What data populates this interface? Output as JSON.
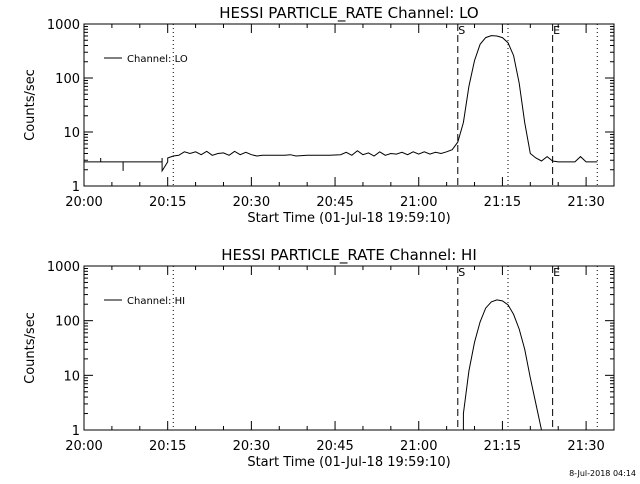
{
  "footer": {
    "timestamp": "8-Jul-2018 04:14"
  },
  "chart_data": [
    {
      "type": "line",
      "title": "HESSI PARTICLE_RATE Channel: LO",
      "xlabel": "Start Time (01-Jul-18 19:59:10)",
      "ylabel": "Counts/sec",
      "yscale": "log",
      "ylim": [
        1,
        1000
      ],
      "y_ticks": [
        "1",
        "10",
        "100",
        "1000"
      ],
      "x_ticks": [
        "20:00",
        "20:15",
        "20:30",
        "20:45",
        "21:00",
        "21:15",
        "21:30"
      ],
      "legend": {
        "entries": [
          "Channel: LO"
        ],
        "placement": "top-left"
      },
      "event_markers": [
        {
          "label": "S",
          "time": "21:07",
          "style": "dashed"
        },
        {
          "label": "E",
          "time": "21:24",
          "style": "dashed"
        }
      ],
      "dotted_lines": [
        "20:16",
        "21:16",
        "21:32"
      ],
      "series": [
        {
          "name": "Channel: LO",
          "x": [
            "20:00",
            "20:03",
            "20:03",
            "20:03",
            "20:06",
            "20:07",
            "20:07",
            "20:07",
            "20:10",
            "20:13",
            "20:14",
            "20:14",
            "20:14",
            "20:15",
            "20:15",
            "20:16",
            "20:16",
            "20:17",
            "20:18",
            "20:19",
            "20:20",
            "20:21",
            "20:22",
            "20:23",
            "20:24",
            "20:25",
            "20:26",
            "20:27",
            "20:28",
            "20:29",
            "20:30",
            "20:31",
            "20:32",
            "20:33",
            "20:34",
            "20:35",
            "20:36",
            "20:37",
            "20:38",
            "20:40",
            "20:42",
            "20:44",
            "20:46",
            "20:47",
            "20:48",
            "20:49",
            "20:50",
            "20:51",
            "20:52",
            "20:53",
            "20:54",
            "20:55",
            "20:56",
            "20:57",
            "20:58",
            "20:59",
            "21:00",
            "21:01",
            "21:02",
            "21:03",
            "21:04",
            "21:05",
            "21:06",
            "21:07",
            "21:08",
            "21:09",
            "21:10",
            "21:11",
            "21:12",
            "21:13",
            "21:14",
            "21:15",
            "21:16",
            "21:17",
            "21:18",
            "21:19",
            "21:20",
            "21:21",
            "21:22",
            "21:23",
            "21:24",
            "21:25",
            "21:26",
            "21:28",
            "21:29",
            "21:30",
            "21:31",
            "21:32"
          ],
          "y": [
            2.8,
            2.8,
            3.3,
            2.8,
            2.8,
            2.8,
            1.9,
            2.8,
            2.8,
            2.8,
            2.8,
            3.3,
            1.9,
            2.8,
            3.3,
            3.6,
            3.6,
            3.7,
            4.3,
            4.0,
            4.3,
            3.8,
            4.4,
            3.7,
            4.0,
            4.1,
            3.7,
            4.4,
            3.8,
            4.2,
            3.8,
            3.6,
            3.7,
            3.7,
            3.7,
            3.7,
            3.7,
            3.8,
            3.6,
            3.7,
            3.7,
            3.7,
            3.8,
            4.2,
            3.7,
            4.5,
            3.8,
            4.1,
            3.6,
            4.3,
            3.7,
            4.0,
            3.9,
            4.2,
            3.8,
            4.3,
            3.9,
            4.3,
            3.9,
            4.2,
            4.0,
            4.3,
            4.7,
            6.5,
            15,
            70,
            210,
            420,
            560,
            610,
            600,
            560,
            450,
            260,
            80,
            15,
            4,
            3.3,
            2.9,
            3.5,
            2.9,
            2.8,
            2.8,
            2.8,
            3.5,
            2.8,
            2.8,
            2.8
          ]
        }
      ]
    },
    {
      "type": "line",
      "title": "HESSI PARTICLE_RATE Channel: HI",
      "xlabel": "Start Time (01-Jul-18 19:59:10)",
      "ylabel": "Counts/sec",
      "yscale": "log",
      "ylim": [
        1,
        1000
      ],
      "y_ticks": [
        "1",
        "10",
        "100",
        "1000"
      ],
      "x_ticks": [
        "20:00",
        "20:15",
        "20:30",
        "20:45",
        "21:00",
        "21:15",
        "21:30"
      ],
      "legend": {
        "entries": [
          "Channel: HI"
        ],
        "placement": "top-left"
      },
      "event_markers": [
        {
          "label": "S",
          "time": "21:07",
          "style": "dashed"
        },
        {
          "label": "E",
          "time": "21:24",
          "style": "dashed"
        }
      ],
      "dotted_lines": [
        "20:16",
        "21:16",
        "21:32"
      ],
      "series": [
        {
          "name": "Channel: HI",
          "x": [
            "21:08",
            "21:08",
            "21:09",
            "21:10",
            "21:11",
            "21:12",
            "21:13",
            "21:14",
            "21:15",
            "21:16",
            "21:17",
            "21:18",
            "21:19",
            "21:20",
            "21:21",
            "21:22"
          ],
          "y": [
            1,
            2,
            12,
            40,
            95,
            170,
            220,
            240,
            230,
            195,
            130,
            70,
            30,
            9,
            3,
            1
          ]
        }
      ]
    }
  ]
}
